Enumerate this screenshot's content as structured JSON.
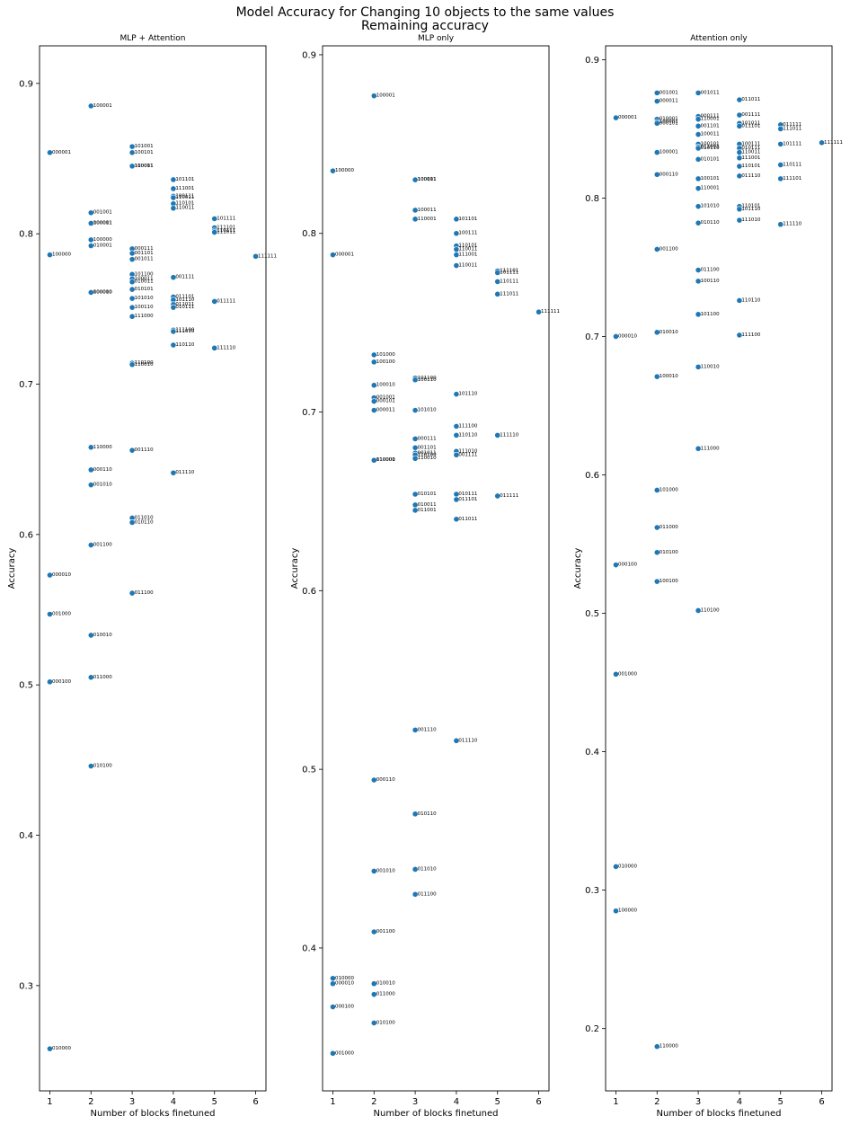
{
  "suptitle_line1": "Model Accuracy for Changing 10 objects to the same values",
  "suptitle_line2": "Remaining accuracy",
  "chart_data": [
    {
      "type": "scatter",
      "title": "MLP + Attention",
      "xlabel": "Number of blocks finetuned",
      "ylabel": "Accuracy",
      "xticks": [
        1,
        2,
        3,
        4,
        5,
        6
      ],
      "yticks": [
        0.3,
        0.4,
        0.5,
        0.6,
        0.7,
        0.8,
        0.9
      ],
      "ylim": [
        0.23,
        0.925
      ],
      "xlim": [
        0.75,
        6.25
      ],
      "points": [
        {
          "x": 1,
          "y": 0.854,
          "label": "000001"
        },
        {
          "x": 1,
          "y": 0.786,
          "label": "100000"
        },
        {
          "x": 1,
          "y": 0.573,
          "label": "000010"
        },
        {
          "x": 1,
          "y": 0.547,
          "label": "001000"
        },
        {
          "x": 1,
          "y": 0.502,
          "label": "000100"
        },
        {
          "x": 1,
          "y": 0.258,
          "label": "010000"
        },
        {
          "x": 2,
          "y": 0.885,
          "label": "100001"
        },
        {
          "x": 2,
          "y": 0.814,
          "label": "001001"
        },
        {
          "x": 2,
          "y": 0.807,
          "label": "000011"
        },
        {
          "x": 2,
          "y": 0.807,
          "label": "100001"
        },
        {
          "x": 2,
          "y": 0.796,
          "label": "100000"
        },
        {
          "x": 2,
          "y": 0.792,
          "label": "010001"
        },
        {
          "x": 2,
          "y": 0.761,
          "label": "100010"
        },
        {
          "x": 2,
          "y": 0.761,
          "label": "000000"
        },
        {
          "x": 2,
          "y": 0.658,
          "label": "110000"
        },
        {
          "x": 2,
          "y": 0.643,
          "label": "000110"
        },
        {
          "x": 2,
          "y": 0.633,
          "label": "001010"
        },
        {
          "x": 2,
          "y": 0.593,
          "label": "001100"
        },
        {
          "x": 2,
          "y": 0.533,
          "label": "010010"
        },
        {
          "x": 2,
          "y": 0.505,
          "label": "011000"
        },
        {
          "x": 2,
          "y": 0.446,
          "label": "010100"
        },
        {
          "x": 3,
          "y": 0.858,
          "label": "101001"
        },
        {
          "x": 3,
          "y": 0.854,
          "label": "100101"
        },
        {
          "x": 3,
          "y": 0.845,
          "label": "110001"
        },
        {
          "x": 3,
          "y": 0.845,
          "label": "100011"
        },
        {
          "x": 3,
          "y": 0.79,
          "label": "000111"
        },
        {
          "x": 3,
          "y": 0.787,
          "label": "001101"
        },
        {
          "x": 3,
          "y": 0.783,
          "label": "001011"
        },
        {
          "x": 3,
          "y": 0.773,
          "label": "101100"
        },
        {
          "x": 3,
          "y": 0.77,
          "label": "100011"
        },
        {
          "x": 3,
          "y": 0.768,
          "label": "010011"
        },
        {
          "x": 3,
          "y": 0.763,
          "label": "010101"
        },
        {
          "x": 3,
          "y": 0.757,
          "label": "101010"
        },
        {
          "x": 3,
          "y": 0.751,
          "label": "100110"
        },
        {
          "x": 3,
          "y": 0.745,
          "label": "111000"
        },
        {
          "x": 3,
          "y": 0.714,
          "label": "110100"
        },
        {
          "x": 3,
          "y": 0.713,
          "label": "110010"
        },
        {
          "x": 3,
          "y": 0.656,
          "label": "001110"
        },
        {
          "x": 3,
          "y": 0.611,
          "label": "011010"
        },
        {
          "x": 3,
          "y": 0.608,
          "label": "010110"
        },
        {
          "x": 3,
          "y": 0.561,
          "label": "011100"
        },
        {
          "x": 4,
          "y": 0.836,
          "label": "101101"
        },
        {
          "x": 4,
          "y": 0.83,
          "label": "111001"
        },
        {
          "x": 4,
          "y": 0.825,
          "label": "100111"
        },
        {
          "x": 4,
          "y": 0.824,
          "label": "110011"
        },
        {
          "x": 4,
          "y": 0.82,
          "label": "110101"
        },
        {
          "x": 4,
          "y": 0.817,
          "label": "110011"
        },
        {
          "x": 4,
          "y": 0.771,
          "label": "001111"
        },
        {
          "x": 4,
          "y": 0.758,
          "label": "011101"
        },
        {
          "x": 4,
          "y": 0.756,
          "label": "101110"
        },
        {
          "x": 4,
          "y": 0.753,
          "label": "011011"
        },
        {
          "x": 4,
          "y": 0.751,
          "label": "010111"
        },
        {
          "x": 4,
          "y": 0.736,
          "label": "111100"
        },
        {
          "x": 4,
          "y": 0.735,
          "label": "111010"
        },
        {
          "x": 4,
          "y": 0.726,
          "label": "110110"
        },
        {
          "x": 4,
          "y": 0.641,
          "label": "011110"
        },
        {
          "x": 5,
          "y": 0.81,
          "label": "101111"
        },
        {
          "x": 5,
          "y": 0.804,
          "label": "111101"
        },
        {
          "x": 5,
          "y": 0.802,
          "label": "110111"
        },
        {
          "x": 5,
          "y": 0.801,
          "label": "111011"
        },
        {
          "x": 5,
          "y": 0.755,
          "label": "011111"
        },
        {
          "x": 5,
          "y": 0.724,
          "label": "111110"
        },
        {
          "x": 6,
          "y": 0.785,
          "label": "111111"
        }
      ]
    },
    {
      "type": "scatter",
      "title": "MLP only",
      "xlabel": "Number of blocks finetuned",
      "ylabel": "Accuracy",
      "xticks": [
        1,
        2,
        3,
        4,
        5,
        6
      ],
      "yticks": [
        0.4,
        0.5,
        0.6,
        0.7,
        0.8,
        0.9
      ],
      "ylim": [
        0.32,
        0.905
      ],
      "xlim": [
        0.75,
        6.25
      ],
      "points": [
        {
          "x": 1,
          "y": 0.835,
          "label": "100000"
        },
        {
          "x": 1,
          "y": 0.788,
          "label": "000001"
        },
        {
          "x": 1,
          "y": 0.383,
          "label": "010000"
        },
        {
          "x": 1,
          "y": 0.38,
          "label": "000010"
        },
        {
          "x": 1,
          "y": 0.367,
          "label": "000100"
        },
        {
          "x": 1,
          "y": 0.341,
          "label": "001000"
        },
        {
          "x": 2,
          "y": 0.877,
          "label": "100001"
        },
        {
          "x": 2,
          "y": 0.732,
          "label": "101000"
        },
        {
          "x": 2,
          "y": 0.728,
          "label": "100100"
        },
        {
          "x": 2,
          "y": 0.715,
          "label": "100010"
        },
        {
          "x": 2,
          "y": 0.708,
          "label": "001001"
        },
        {
          "x": 2,
          "y": 0.706,
          "label": "000101"
        },
        {
          "x": 2,
          "y": 0.701,
          "label": "000011"
        },
        {
          "x": 2,
          "y": 0.673,
          "label": "110000"
        },
        {
          "x": 2,
          "y": 0.673,
          "label": "010001"
        },
        {
          "x": 2,
          "y": 0.494,
          "label": "000110"
        },
        {
          "x": 2,
          "y": 0.443,
          "label": "001010"
        },
        {
          "x": 2,
          "y": 0.409,
          "label": "001100"
        },
        {
          "x": 2,
          "y": 0.38,
          "label": "010010"
        },
        {
          "x": 2,
          "y": 0.374,
          "label": "011000"
        },
        {
          "x": 2,
          "y": 0.358,
          "label": "010100"
        },
        {
          "x": 3,
          "y": 0.83,
          "label": "100101"
        },
        {
          "x": 3,
          "y": 0.83,
          "label": "100011"
        },
        {
          "x": 3,
          "y": 0.813,
          "label": "100011"
        },
        {
          "x": 3,
          "y": 0.808,
          "label": "110001"
        },
        {
          "x": 3,
          "y": 0.719,
          "label": "101100"
        },
        {
          "x": 3,
          "y": 0.718,
          "label": "100110"
        },
        {
          "x": 3,
          "y": 0.701,
          "label": "101010"
        },
        {
          "x": 3,
          "y": 0.685,
          "label": "000111"
        },
        {
          "x": 3,
          "y": 0.68,
          "label": "001101"
        },
        {
          "x": 3,
          "y": 0.677,
          "label": "001011"
        },
        {
          "x": 3,
          "y": 0.676,
          "label": "110100"
        },
        {
          "x": 3,
          "y": 0.674,
          "label": "110010"
        },
        {
          "x": 3,
          "y": 0.654,
          "label": "010101"
        },
        {
          "x": 3,
          "y": 0.648,
          "label": "010011"
        },
        {
          "x": 3,
          "y": 0.645,
          "label": "011001"
        },
        {
          "x": 3,
          "y": 0.522,
          "label": "001110"
        },
        {
          "x": 3,
          "y": 0.475,
          "label": "010110"
        },
        {
          "x": 3,
          "y": 0.444,
          "label": "011010"
        },
        {
          "x": 3,
          "y": 0.43,
          "label": "011100"
        },
        {
          "x": 4,
          "y": 0.808,
          "label": "101101"
        },
        {
          "x": 4,
          "y": 0.8,
          "label": "100111"
        },
        {
          "x": 4,
          "y": 0.793,
          "label": "110101"
        },
        {
          "x": 4,
          "y": 0.791,
          "label": "110011"
        },
        {
          "x": 4,
          "y": 0.788,
          "label": "111001"
        },
        {
          "x": 4,
          "y": 0.782,
          "label": "110011"
        },
        {
          "x": 4,
          "y": 0.71,
          "label": "101110"
        },
        {
          "x": 4,
          "y": 0.692,
          "label": "111100"
        },
        {
          "x": 4,
          "y": 0.687,
          "label": "110110"
        },
        {
          "x": 4,
          "y": 0.678,
          "label": "111010"
        },
        {
          "x": 4,
          "y": 0.676,
          "label": "001111"
        },
        {
          "x": 4,
          "y": 0.654,
          "label": "010111"
        },
        {
          "x": 4,
          "y": 0.651,
          "label": "011101"
        },
        {
          "x": 4,
          "y": 0.64,
          "label": "011011"
        },
        {
          "x": 4,
          "y": 0.516,
          "label": "011110"
        },
        {
          "x": 5,
          "y": 0.779,
          "label": "111101"
        },
        {
          "x": 5,
          "y": 0.778,
          "label": "101111"
        },
        {
          "x": 5,
          "y": 0.773,
          "label": "110111"
        },
        {
          "x": 5,
          "y": 0.766,
          "label": "111011"
        },
        {
          "x": 5,
          "y": 0.687,
          "label": "111110"
        },
        {
          "x": 5,
          "y": 0.653,
          "label": "011111"
        },
        {
          "x": 6,
          "y": 0.756,
          "label": "111111"
        }
      ]
    },
    {
      "type": "scatter",
      "title": "Attention only",
      "xlabel": "Number of blocks finetuned",
      "ylabel": "Accuracy",
      "xticks": [
        1,
        2,
        3,
        4,
        5,
        6
      ],
      "yticks": [
        0.2,
        0.3,
        0.4,
        0.5,
        0.6,
        0.7,
        0.8,
        0.9
      ],
      "ylim": [
        0.155,
        0.91
      ],
      "xlim": [
        0.75,
        6.25
      ],
      "points": [
        {
          "x": 1,
          "y": 0.858,
          "label": "000001"
        },
        {
          "x": 1,
          "y": 0.7,
          "label": "000010"
        },
        {
          "x": 1,
          "y": 0.535,
          "label": "000100"
        },
        {
          "x": 1,
          "y": 0.456,
          "label": "001000"
        },
        {
          "x": 1,
          "y": 0.317,
          "label": "010000"
        },
        {
          "x": 1,
          "y": 0.285,
          "label": "100000"
        },
        {
          "x": 2,
          "y": 0.876,
          "label": "001001"
        },
        {
          "x": 2,
          "y": 0.87,
          "label": "000011"
        },
        {
          "x": 2,
          "y": 0.857,
          "label": "010001"
        },
        {
          "x": 2,
          "y": 0.855,
          "label": "100001"
        },
        {
          "x": 2,
          "y": 0.854,
          "label": "000101"
        },
        {
          "x": 2,
          "y": 0.833,
          "label": "100001"
        },
        {
          "x": 2,
          "y": 0.817,
          "label": "000110"
        },
        {
          "x": 2,
          "y": 0.763,
          "label": "001100"
        },
        {
          "x": 2,
          "y": 0.703,
          "label": "010010"
        },
        {
          "x": 2,
          "y": 0.671,
          "label": "100010"
        },
        {
          "x": 2,
          "y": 0.589,
          "label": "101000"
        },
        {
          "x": 2,
          "y": 0.562,
          "label": "011000"
        },
        {
          "x": 2,
          "y": 0.544,
          "label": "010100"
        },
        {
          "x": 2,
          "y": 0.523,
          "label": "100100"
        },
        {
          "x": 2,
          "y": 0.187,
          "label": "110000"
        },
        {
          "x": 3,
          "y": 0.876,
          "label": "001011"
        },
        {
          "x": 3,
          "y": 0.859,
          "label": "000111"
        },
        {
          "x": 3,
          "y": 0.857,
          "label": "110001"
        },
        {
          "x": 3,
          "y": 0.852,
          "label": "001101"
        },
        {
          "x": 3,
          "y": 0.846,
          "label": "100011"
        },
        {
          "x": 3,
          "y": 0.839,
          "label": "100101"
        },
        {
          "x": 3,
          "y": 0.837,
          "label": "011001"
        },
        {
          "x": 3,
          "y": 0.836,
          "label": "010110"
        },
        {
          "x": 3,
          "y": 0.828,
          "label": "010101"
        },
        {
          "x": 3,
          "y": 0.814,
          "label": "100101"
        },
        {
          "x": 3,
          "y": 0.807,
          "label": "110001"
        },
        {
          "x": 3,
          "y": 0.794,
          "label": "101010"
        },
        {
          "x": 3,
          "y": 0.782,
          "label": "010110"
        },
        {
          "x": 3,
          "y": 0.748,
          "label": "011100"
        },
        {
          "x": 3,
          "y": 0.74,
          "label": "100110"
        },
        {
          "x": 3,
          "y": 0.716,
          "label": "101100"
        },
        {
          "x": 3,
          "y": 0.678,
          "label": "110010"
        },
        {
          "x": 3,
          "y": 0.619,
          "label": "111000"
        },
        {
          "x": 3,
          "y": 0.502,
          "label": "110100"
        },
        {
          "x": 4,
          "y": 0.871,
          "label": "011011"
        },
        {
          "x": 4,
          "y": 0.86,
          "label": "001111"
        },
        {
          "x": 4,
          "y": 0.854,
          "label": "101011"
        },
        {
          "x": 4,
          "y": 0.852,
          "label": "011101"
        },
        {
          "x": 4,
          "y": 0.839,
          "label": "100111"
        },
        {
          "x": 4,
          "y": 0.836,
          "label": "010111"
        },
        {
          "x": 4,
          "y": 0.833,
          "label": "110011"
        },
        {
          "x": 4,
          "y": 0.829,
          "label": "111001"
        },
        {
          "x": 4,
          "y": 0.823,
          "label": "110101"
        },
        {
          "x": 4,
          "y": 0.816,
          "label": "011110"
        },
        {
          "x": 4,
          "y": 0.794,
          "label": "110101"
        },
        {
          "x": 4,
          "y": 0.792,
          "label": "101110"
        },
        {
          "x": 4,
          "y": 0.784,
          "label": "111010"
        },
        {
          "x": 4,
          "y": 0.726,
          "label": "110110"
        },
        {
          "x": 4,
          "y": 0.701,
          "label": "111100"
        },
        {
          "x": 5,
          "y": 0.853,
          "label": "011111"
        },
        {
          "x": 5,
          "y": 0.85,
          "label": "111011"
        },
        {
          "x": 5,
          "y": 0.839,
          "label": "101111"
        },
        {
          "x": 5,
          "y": 0.824,
          "label": "110111"
        },
        {
          "x": 5,
          "y": 0.814,
          "label": "111101"
        },
        {
          "x": 5,
          "y": 0.781,
          "label": "111110"
        },
        {
          "x": 6,
          "y": 0.84,
          "label": "111111"
        }
      ]
    }
  ]
}
